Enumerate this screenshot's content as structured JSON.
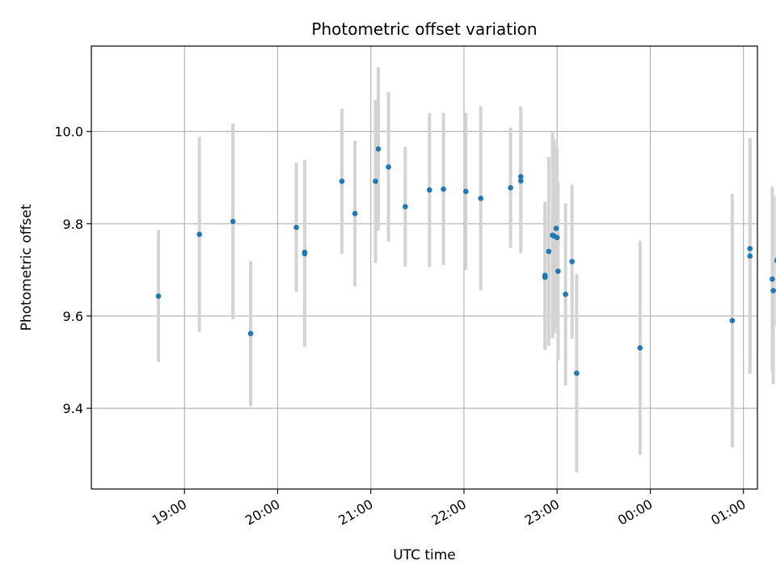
{
  "chart_data": {
    "type": "scatter",
    "title": "Photometric offset variation",
    "xlabel": "UTC time",
    "ylabel": "Photometric offset",
    "x_unit": "hours since 18:00 UTC",
    "xlim": [
      18.0,
      25.15
    ],
    "ylim": [
      9.225,
      10.185
    ],
    "xticks": [
      {
        "value": 19,
        "label": "19:00"
      },
      {
        "value": 20,
        "label": "20:00"
      },
      {
        "value": 21,
        "label": "21:00"
      },
      {
        "value": 22,
        "label": "22:00"
      },
      {
        "value": 23,
        "label": "23:00"
      },
      {
        "value": 24,
        "label": "00:00"
      },
      {
        "value": 25,
        "label": "01:00"
      }
    ],
    "yticks": [
      {
        "value": 9.4,
        "label": "9.4"
      },
      {
        "value": 9.6,
        "label": "9.6"
      },
      {
        "value": 9.8,
        "label": "9.8"
      },
      {
        "value": 10.0,
        "label": "10.0"
      }
    ],
    "grid": true,
    "marker_color": "#1f77b4",
    "errorbar_color": "#d3d3d3",
    "points": [
      {
        "x": 18.72,
        "y": 9.643,
        "err": 0.143
      },
      {
        "x": 19.16,
        "y": 9.777,
        "err": 0.211
      },
      {
        "x": 19.52,
        "y": 9.805,
        "err": 0.212
      },
      {
        "x": 19.71,
        "y": 9.562,
        "err": 0.157
      },
      {
        "x": 20.2,
        "y": 9.792,
        "err": 0.14
      },
      {
        "x": 20.29,
        "y": 9.735,
        "err": 0.202
      },
      {
        "x": 20.29,
        "y": 9.738,
        "err": 0.2
      },
      {
        "x": 20.69,
        "y": 9.892,
        "err": 0.157
      },
      {
        "x": 20.83,
        "y": 9.822,
        "err": 0.158
      },
      {
        "x": 21.05,
        "y": 9.892,
        "err": 0.177
      },
      {
        "x": 21.08,
        "y": 9.962,
        "err": 0.177
      },
      {
        "x": 21.19,
        "y": 9.923,
        "err": 0.162
      },
      {
        "x": 21.37,
        "y": 9.837,
        "err": 0.13
      },
      {
        "x": 21.63,
        "y": 9.873,
        "err": 0.167
      },
      {
        "x": 21.78,
        "y": 9.875,
        "err": 0.165
      },
      {
        "x": 22.02,
        "y": 9.87,
        "err": 0.17
      },
      {
        "x": 22.18,
        "y": 9.855,
        "err": 0.2
      },
      {
        "x": 22.5,
        "y": 9.878,
        "err": 0.13
      },
      {
        "x": 22.61,
        "y": 9.902,
        "err": 0.152
      },
      {
        "x": 22.61,
        "y": 9.893,
        "err": 0.157
      },
      {
        "x": 22.87,
        "y": 9.688,
        "err": 0.16
      },
      {
        "x": 22.87,
        "y": 9.684,
        "err": 0.158
      },
      {
        "x": 22.91,
        "y": 9.74,
        "err": 0.205
      },
      {
        "x": 22.95,
        "y": 9.775,
        "err": 0.223
      },
      {
        "x": 22.97,
        "y": 9.773,
        "err": 0.21
      },
      {
        "x": 22.99,
        "y": 9.79,
        "err": 0.167
      },
      {
        "x": 23.0,
        "y": 9.77,
        "err": 0.195
      },
      {
        "x": 23.01,
        "y": 9.697,
        "err": 0.193
      },
      {
        "x": 23.09,
        "y": 9.647,
        "err": 0.197
      },
      {
        "x": 23.16,
        "y": 9.718,
        "err": 0.167
      },
      {
        "x": 23.21,
        "y": 9.476,
        "err": 0.215
      },
      {
        "x": 23.89,
        "y": 9.531,
        "err": 0.232
      },
      {
        "x": 24.88,
        "y": 9.59,
        "err": 0.275
      },
      {
        "x": 25.07,
        "y": 9.746,
        "err": 0.24
      },
      {
        "x": 25.07,
        "y": 9.73,
        "err": 0.255
      },
      {
        "x": 25.31,
        "y": 9.68,
        "err": 0.2
      },
      {
        "x": 25.32,
        "y": 9.655,
        "err": 0.203
      },
      {
        "x": 25.36,
        "y": 9.72,
        "err": 0.142
      },
      {
        "x": 25.37,
        "y": 9.724,
        "err": 0.205
      },
      {
        "x": 25.38,
        "y": 9.724,
        "err": 0.17
      }
    ]
  }
}
